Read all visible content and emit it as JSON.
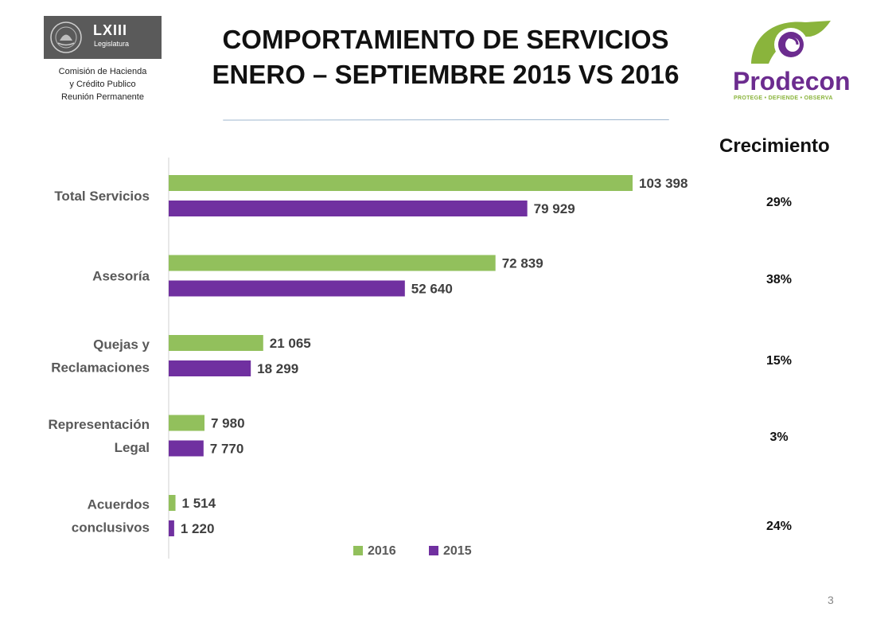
{
  "header": {
    "legislature": {
      "name": "LXIII",
      "sub": "Legislatura"
    },
    "commission": [
      "Comisión de Hacienda",
      "y Crédito Publico",
      "Reunión Permanente"
    ],
    "title_lines": [
      "COMPORTAMIENTO DE SERVICIOS",
      "ENERO – SEPTIEMBRE 2015 VS 2016"
    ],
    "org": {
      "name": "Prodecon",
      "tagline": "PROTEGE • DEFIENDE • OBSERVA"
    }
  },
  "colors": {
    "s2016": "#92c05c",
    "s2015": "#7030a0",
    "brand_purple": "#6c2c8f",
    "brand_green": "#8ab43c",
    "rule": "#7f9fbf"
  },
  "chart_data": {
    "type": "bar",
    "orientation": "horizontal",
    "categories": [
      [
        "Total Servicios"
      ],
      [
        "Asesoría"
      ],
      [
        "Quejas y",
        "Reclamaciones"
      ],
      [
        "Representación",
        "Legal"
      ],
      [
        "Acuerdos",
        "conclusivos"
      ]
    ],
    "series": [
      {
        "name": "2016",
        "values": [
          103398,
          72839,
          21065,
          7980,
          1514
        ],
        "labels": [
          "103 398",
          "72 839",
          "21 065",
          "7 980",
          "1 514"
        ]
      },
      {
        "name": "2015",
        "values": [
          79929,
          52640,
          18299,
          7770,
          1220
        ],
        "labels": [
          "79 929",
          "52 640",
          "18 299",
          "7 770",
          "1 220"
        ]
      }
    ],
    "xlim": [
      0,
      103398
    ],
    "legend": "bottom",
    "grid": false
  },
  "growth": {
    "title": "Crecimiento",
    "values": [
      "29%",
      "38%",
      "15%",
      "3%",
      "24%"
    ]
  },
  "page_number": "3"
}
